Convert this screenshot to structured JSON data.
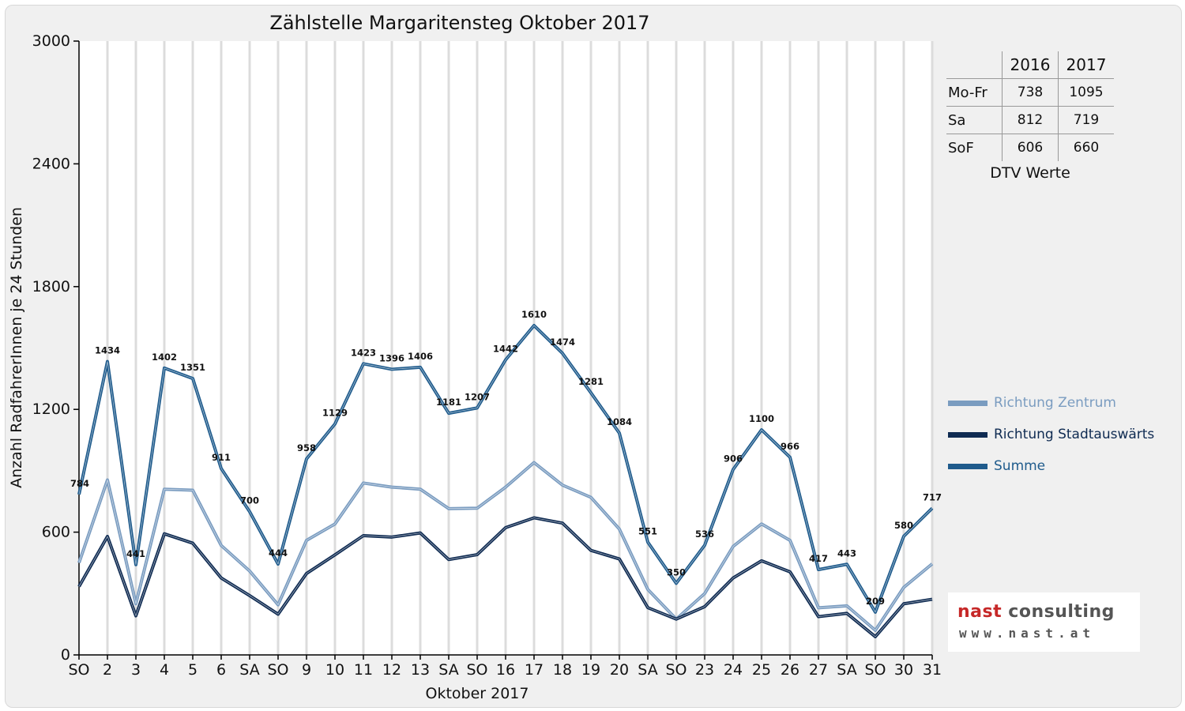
{
  "chart_data": {
    "type": "line",
    "title": "Zählstelle Margaritensteg Oktober 2017",
    "xlabel": "Oktober 2017",
    "ylabel": "Anzahl RadfahrerInnen je 24 Stunden",
    "ylim": [
      0,
      3000
    ],
    "yticks": [
      0,
      600,
      1200,
      1800,
      2400,
      3000
    ],
    "grid": "vertical",
    "categories": [
      "SO",
      "2",
      "3",
      "4",
      "5",
      "6",
      "SA",
      "SO",
      "9",
      "10",
      "11",
      "12",
      "13",
      "SA",
      "SO",
      "16",
      "17",
      "18",
      "19",
      "20",
      "SA",
      "SO",
      "23",
      "24",
      "25",
      "26",
      "27",
      "SA",
      "SO",
      "30",
      "31"
    ],
    "highlighted_categories": [
      0,
      7,
      14,
      21,
      25,
      28
    ],
    "highlight_color": "#e00000",
    "legend_position": "right",
    "series": [
      {
        "name": "Richtung Zentrum",
        "color": "#7a9cc0",
        "values": [
          450,
          855,
          250,
          810,
          805,
          535,
          410,
          245,
          560,
          640,
          840,
          820,
          810,
          715,
          717,
          820,
          940,
          830,
          770,
          615,
          320,
          175,
          300,
          530,
          640,
          560,
          230,
          240,
          120,
          330,
          445
        ]
      },
      {
        "name": "Richtung Stadtauswärts",
        "color": "#0f2b52",
        "values": [
          334,
          579,
          191,
          592,
          546,
          376,
          290,
          199,
          398,
          489,
          583,
          576,
          596,
          466,
          490,
          622,
          670,
          644,
          511,
          469,
          231,
          175,
          236,
          376,
          460,
          406,
          187,
          203,
          89,
          250,
          272
        ]
      },
      {
        "name": "Summe",
        "color": "#1f5b8c",
        "values": [
          784,
          1434,
          441,
          1402,
          1351,
          911,
          700,
          444,
          958,
          1129,
          1423,
          1396,
          1406,
          1181,
          1207,
          1442,
          1610,
          1474,
          1281,
          1084,
          551,
          350,
          536,
          906,
          1100,
          966,
          417,
          443,
          209,
          580,
          717
        ],
        "data_labels": true
      }
    ]
  },
  "dtv_table": {
    "headers": [
      "",
      "2016",
      "2017"
    ],
    "rows": [
      {
        "label": "Mo-Fr",
        "v2016": "738",
        "v2017": "1095"
      },
      {
        "label": "Sa",
        "v2016": "812",
        "v2017": "719"
      },
      {
        "label": "SoF",
        "v2016": "606",
        "v2017": "660"
      }
    ],
    "caption": "DTV Werte"
  },
  "logo": {
    "name_part1": "nast",
    "name_part2": "consulting",
    "url": "www.nast.at"
  }
}
